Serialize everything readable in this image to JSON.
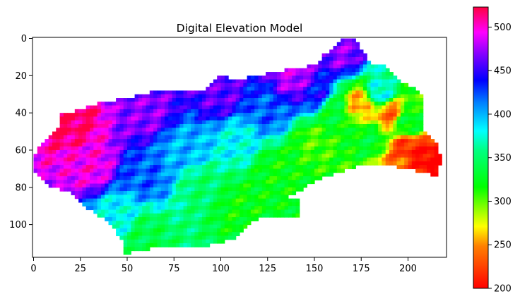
{
  "chart_data": {
    "type": "heatmap",
    "title": "Digital Elevation Model",
    "xlabel": "",
    "ylabel": "",
    "x_ticks": [
      0,
      25,
      50,
      75,
      100,
      125,
      150,
      175,
      200
    ],
    "y_ticks": [
      0,
      20,
      40,
      60,
      80,
      100
    ],
    "xlim": [
      0,
      220
    ],
    "ylim": [
      0,
      117
    ],
    "y_axis_inverted": true,
    "grid": false,
    "colormap": "gist_rainbow-like (red low → yellow → green → cyan → blue → magenta → crimson high)",
    "colorbar": {
      "range": [
        200,
        523
      ],
      "ticks": [
        200,
        250,
        300,
        350,
        400,
        450,
        500
      ]
    },
    "mask_boundary": [
      [
        0,
        65
      ],
      [
        2,
        60
      ],
      [
        15,
        45
      ],
      [
        15,
        41
      ],
      [
        35,
        35
      ],
      [
        50,
        32
      ],
      [
        62,
        29
      ],
      [
        90,
        28
      ],
      [
        100,
        20
      ],
      [
        110,
        22
      ],
      [
        135,
        17
      ],
      [
        152,
        14
      ],
      [
        155,
        9
      ],
      [
        162,
        3
      ],
      [
        165,
        0
      ],
      [
        172,
        0
      ],
      [
        180,
        14
      ],
      [
        188,
        15
      ],
      [
        195,
        22
      ],
      [
        208,
        30
      ],
      [
        208,
        48
      ],
      [
        215,
        55
      ],
      [
        218,
        66
      ],
      [
        215,
        74
      ],
      [
        208,
        72
      ],
      [
        195,
        69
      ],
      [
        175,
        68
      ],
      [
        162,
        72
      ],
      [
        148,
        78
      ],
      [
        137,
        85
      ],
      [
        143,
        87
      ],
      [
        143,
        95
      ],
      [
        135,
        97
      ],
      [
        122,
        96
      ],
      [
        115,
        100
      ],
      [
        108,
        107
      ],
      [
        95,
        111
      ],
      [
        82,
        112
      ],
      [
        72,
        112
      ],
      [
        62,
        113
      ],
      [
        48,
        116
      ],
      [
        47,
        108
      ],
      [
        40,
        98
      ],
      [
        30,
        92
      ],
      [
        25,
        88
      ],
      [
        20,
        82
      ],
      [
        8,
        80
      ],
      [
        5,
        75
      ],
      [
        0,
        70
      ]
    ],
    "elevation_samples": [
      {
        "x": 20,
        "y": 45,
        "z": 518
      },
      {
        "x": 30,
        "y": 68,
        "z": 495
      },
      {
        "x": 60,
        "y": 40,
        "z": 470
      },
      {
        "x": 100,
        "y": 30,
        "z": 460
      },
      {
        "x": 140,
        "y": 22,
        "z": 480
      },
      {
        "x": 165,
        "y": 8,
        "z": 470
      },
      {
        "x": 60,
        "y": 75,
        "z": 420
      },
      {
        "x": 80,
        "y": 60,
        "z": 400
      },
      {
        "x": 110,
        "y": 55,
        "z": 380
      },
      {
        "x": 45,
        "y": 95,
        "z": 380
      },
      {
        "x": 90,
        "y": 80,
        "z": 350
      },
      {
        "x": 60,
        "y": 105,
        "z": 340
      },
      {
        "x": 110,
        "y": 90,
        "z": 320
      },
      {
        "x": 130,
        "y": 70,
        "z": 320
      },
      {
        "x": 150,
        "y": 55,
        "z": 305
      },
      {
        "x": 180,
        "y": 55,
        "z": 330
      },
      {
        "x": 200,
        "y": 45,
        "z": 330
      },
      {
        "x": 185,
        "y": 30,
        "z": 380
      },
      {
        "x": 160,
        "y": 40,
        "z": 330
      },
      {
        "x": 175,
        "y": 35,
        "z": 255
      },
      {
        "x": 190,
        "y": 40,
        "z": 240
      },
      {
        "x": 200,
        "y": 60,
        "z": 215
      },
      {
        "x": 210,
        "y": 65,
        "z": 200
      },
      {
        "x": 195,
        "y": 67,
        "z": 240
      },
      {
        "x": 150,
        "y": 30,
        "z": 440
      },
      {
        "x": 125,
        "y": 40,
        "z": 420
      }
    ]
  }
}
